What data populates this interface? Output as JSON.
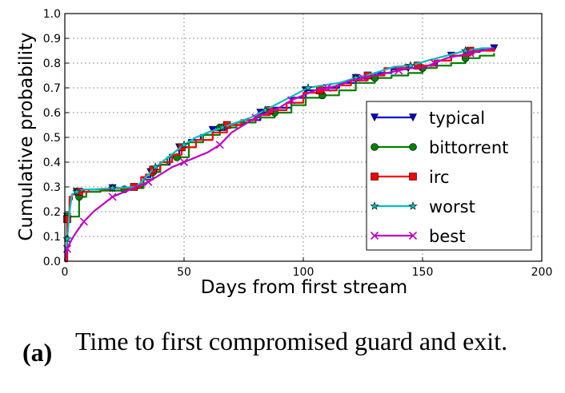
{
  "caption": {
    "tag": "(a)",
    "text": "Time to first compromised guard and exit."
  },
  "chart_data": {
    "type": "line",
    "xlabel": "Days from first stream",
    "ylabel": "Cumulative probability",
    "xlim": [
      0,
      200
    ],
    "ylim": [
      0.0,
      1.0
    ],
    "xticks": [
      "0",
      "50",
      "100",
      "150",
      "200"
    ],
    "yticks": [
      "0.0",
      "0.1",
      "0.2",
      "0.3",
      "0.4",
      "0.5",
      "0.6",
      "0.7",
      "0.8",
      "0.9",
      "1.0"
    ],
    "grid": true,
    "legend_position": "right",
    "series": [
      {
        "name": "typical",
        "color": "#0000cc",
        "marker": "triangle-down",
        "step": true,
        "x": [
          0,
          1,
          2,
          3,
          5,
          8,
          12,
          20,
          28,
          33,
          36,
          40,
          44,
          48,
          52,
          57,
          62,
          68,
          75,
          82,
          88,
          95,
          101,
          108,
          115,
          122,
          130,
          137,
          144,
          150,
          156,
          162,
          168,
          174,
          180
        ],
        "y": [
          0.0,
          0.18,
          0.25,
          0.27,
          0.28,
          0.29,
          0.29,
          0.295,
          0.3,
          0.34,
          0.36,
          0.39,
          0.43,
          0.46,
          0.49,
          0.51,
          0.53,
          0.55,
          0.57,
          0.6,
          0.62,
          0.66,
          0.69,
          0.7,
          0.72,
          0.74,
          0.76,
          0.775,
          0.78,
          0.79,
          0.81,
          0.83,
          0.845,
          0.855,
          0.86
        ]
      },
      {
        "name": "bittorrent",
        "color": "#007f00",
        "marker": "circle",
        "step": true,
        "x": [
          0,
          1,
          2,
          5,
          6,
          9,
          15,
          25,
          30,
          33,
          37,
          40,
          43,
          47,
          52,
          58,
          65,
          72,
          80,
          88,
          95,
          101,
          108,
          115,
          122,
          130,
          137,
          144,
          150,
          156,
          162,
          168,
          174,
          180
        ],
        "y": [
          0.0,
          0.18,
          0.18,
          0.18,
          0.26,
          0.28,
          0.285,
          0.29,
          0.295,
          0.33,
          0.36,
          0.39,
          0.42,
          0.42,
          0.48,
          0.51,
          0.54,
          0.56,
          0.58,
          0.6,
          0.63,
          0.66,
          0.67,
          0.69,
          0.72,
          0.74,
          0.75,
          0.76,
          0.78,
          0.79,
          0.8,
          0.82,
          0.83,
          0.84
        ]
      },
      {
        "name": "irc",
        "color": "#ff0000",
        "marker": "square",
        "step": true,
        "x": [
          0,
          1,
          2,
          3,
          6,
          10,
          20,
          29,
          32,
          34,
          37,
          40,
          45,
          49,
          55,
          62,
          68,
          74,
          80,
          86,
          93,
          100,
          107,
          114,
          120,
          127,
          134,
          141,
          148,
          155,
          162,
          170,
          180
        ],
        "y": [
          0.0,
          0.17,
          0.26,
          0.27,
          0.28,
          0.29,
          0.295,
          0.3,
          0.34,
          0.35,
          0.37,
          0.4,
          0.43,
          0.46,
          0.49,
          0.52,
          0.55,
          0.57,
          0.59,
          0.61,
          0.64,
          0.68,
          0.69,
          0.71,
          0.73,
          0.75,
          0.78,
          0.78,
          0.79,
          0.81,
          0.83,
          0.85,
          0.86
        ]
      },
      {
        "name": "worst",
        "color": "#00bfbf",
        "marker": "star",
        "step": false,
        "x": [
          0,
          1,
          2,
          3,
          5,
          8,
          12,
          20,
          30,
          34,
          38,
          42,
          46,
          50,
          55,
          60,
          66,
          72,
          78,
          84,
          90,
          96,
          102,
          108,
          115,
          122,
          130,
          138,
          145,
          152,
          160,
          168,
          175,
          180
        ],
        "y": [
          0.0,
          0.09,
          0.2,
          0.27,
          0.28,
          0.29,
          0.29,
          0.295,
          0.3,
          0.34,
          0.38,
          0.41,
          0.44,
          0.47,
          0.5,
          0.52,
          0.54,
          0.56,
          0.58,
          0.61,
          0.64,
          0.67,
          0.7,
          0.71,
          0.72,
          0.74,
          0.76,
          0.785,
          0.79,
          0.81,
          0.83,
          0.85,
          0.86,
          0.86
        ]
      },
      {
        "name": "best",
        "color": "#bf00bf",
        "marker": "x",
        "step": false,
        "x": [
          0,
          1,
          3,
          5,
          8,
          12,
          16,
          20,
          25,
          30,
          35,
          40,
          45,
          50,
          55,
          60,
          65,
          70,
          75,
          80,
          85,
          90,
          95,
          100,
          105,
          110,
          115,
          120,
          125,
          130,
          135,
          140,
          145,
          150,
          155,
          160,
          165,
          170,
          175,
          180
        ],
        "y": [
          0.0,
          0.05,
          0.09,
          0.12,
          0.16,
          0.2,
          0.23,
          0.26,
          0.28,
          0.3,
          0.32,
          0.35,
          0.38,
          0.4,
          0.42,
          0.44,
          0.47,
          0.52,
          0.55,
          0.58,
          0.6,
          0.62,
          0.65,
          0.67,
          0.69,
          0.7,
          0.71,
          0.73,
          0.74,
          0.75,
          0.76,
          0.77,
          0.78,
          0.78,
          0.8,
          0.82,
          0.83,
          0.84,
          0.85,
          0.86
        ]
      }
    ]
  }
}
